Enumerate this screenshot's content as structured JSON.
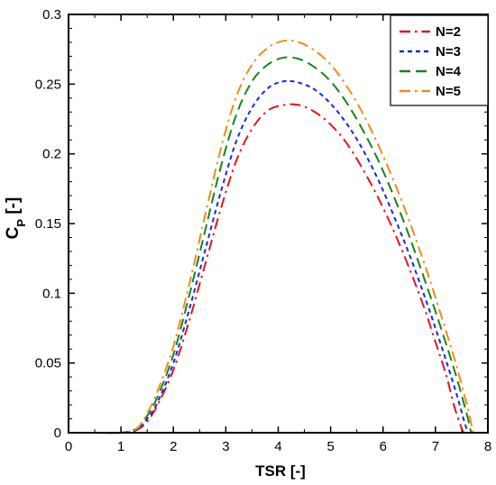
{
  "chart_data": {
    "type": "line",
    "xlabel": "TSR [-]",
    "ylabel": {
      "main": "C",
      "sub": "P",
      "suffix": " [-]"
    },
    "xlim": [
      0,
      8
    ],
    "ylim": [
      0,
      0.3
    ],
    "xticks": [
      0,
      1,
      2,
      3,
      4,
      5,
      6,
      7,
      8
    ],
    "yticks": [
      0,
      0.05,
      0.1,
      0.15,
      0.2,
      0.25,
      0.3
    ],
    "xtick_labels": [
      "0",
      "1",
      "2",
      "3",
      "4",
      "5",
      "6",
      "7",
      "8"
    ],
    "ytick_labels": [
      "0",
      "0.05",
      "0.1",
      "0.15",
      "0.2",
      "0.25",
      "0.3"
    ],
    "grid": false,
    "legend_position": "top-right",
    "series": [
      {
        "name": "N=2",
        "color": "#e8141b",
        "dash": "dash-dot",
        "x": [
          0,
          0.5,
          1.0,
          1.3,
          1.5,
          1.7,
          2.0,
          2.3,
          2.6,
          2.9,
          3.2,
          3.5,
          3.8,
          4.1,
          4.4,
          4.7,
          5.0,
          5.3,
          5.6,
          5.9,
          6.2,
          6.5,
          6.8,
          7.0,
          7.2,
          7.35,
          7.5,
          7.55
        ],
        "y": [
          0,
          0,
          0,
          0.002,
          0.008,
          0.02,
          0.045,
          0.08,
          0.12,
          0.16,
          0.195,
          0.218,
          0.231,
          0.235,
          0.235,
          0.23,
          0.221,
          0.208,
          0.19,
          0.169,
          0.145,
          0.118,
          0.088,
          0.065,
          0.042,
          0.02,
          0.003,
          0
        ]
      },
      {
        "name": "N=3",
        "color": "#1428e6",
        "dash": "dotted",
        "x": [
          0,
          0.5,
          1.0,
          1.3,
          1.5,
          1.7,
          2.0,
          2.3,
          2.6,
          2.9,
          3.2,
          3.5,
          3.8,
          4.1,
          4.4,
          4.7,
          5.0,
          5.3,
          5.6,
          5.9,
          6.2,
          6.5,
          6.8,
          7.0,
          7.2,
          7.4,
          7.55,
          7.62
        ],
        "y": [
          0,
          0,
          0,
          0.002,
          0.01,
          0.022,
          0.05,
          0.088,
          0.13,
          0.172,
          0.209,
          0.233,
          0.247,
          0.252,
          0.251,
          0.246,
          0.236,
          0.222,
          0.204,
          0.182,
          0.156,
          0.128,
          0.097,
          0.075,
          0.052,
          0.028,
          0.008,
          0
        ]
      },
      {
        "name": "N=4",
        "color": "#14851e",
        "dash": "dashed",
        "x": [
          0,
          0.5,
          1.0,
          1.3,
          1.5,
          1.7,
          2.0,
          2.3,
          2.6,
          2.9,
          3.2,
          3.5,
          3.8,
          4.1,
          4.4,
          4.7,
          5.0,
          5.3,
          5.6,
          5.9,
          6.2,
          6.5,
          6.8,
          7.0,
          7.2,
          7.4,
          7.6,
          7.68
        ],
        "y": [
          0,
          0,
          0,
          0.003,
          0.012,
          0.026,
          0.056,
          0.098,
          0.144,
          0.19,
          0.228,
          0.252,
          0.264,
          0.269,
          0.268,
          0.262,
          0.252,
          0.237,
          0.218,
          0.196,
          0.17,
          0.141,
          0.109,
          0.087,
          0.064,
          0.04,
          0.013,
          0
        ]
      },
      {
        "name": "N=5",
        "color": "#f08c14",
        "dash": "dash-dot",
        "x": [
          0,
          0.5,
          1.0,
          1.3,
          1.5,
          1.7,
          2.0,
          2.3,
          2.6,
          2.9,
          3.2,
          3.5,
          3.8,
          4.1,
          4.4,
          4.7,
          5.0,
          5.3,
          5.6,
          5.9,
          6.2,
          6.5,
          6.8,
          7.0,
          7.2,
          7.4,
          7.6,
          7.72
        ],
        "y": [
          0,
          0,
          0,
          0.003,
          0.014,
          0.03,
          0.062,
          0.106,
          0.155,
          0.203,
          0.241,
          0.264,
          0.276,
          0.281,
          0.28,
          0.274,
          0.264,
          0.249,
          0.23,
          0.207,
          0.181,
          0.152,
          0.12,
          0.097,
          0.073,
          0.048,
          0.02,
          0
        ]
      }
    ]
  }
}
